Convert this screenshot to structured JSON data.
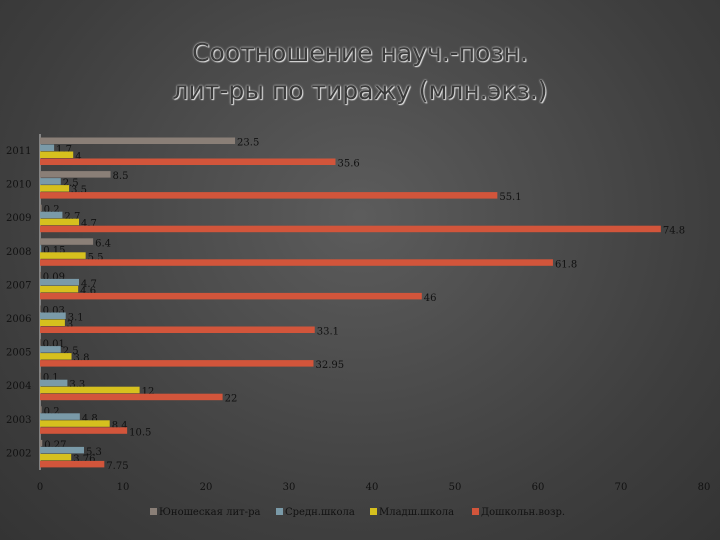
{
  "title": "Соотношение науч.-позн.\nлит-ры по тиражу (млн.экз.)",
  "colors": {
    "series": [
      "#8a7f77",
      "#7a9aa8",
      "#d6c01e",
      "#d2553b"
    ],
    "axis": "#c8c8c8"
  },
  "chart_data": {
    "type": "bar",
    "orientation": "horizontal",
    "categories": [
      "2011",
      "2010",
      "2009",
      "2008",
      "2007",
      "2006",
      "2005",
      "2004",
      "2003",
      "2002"
    ],
    "series": [
      {
        "name": "Юношеская лит-ра",
        "values": [
          23.5,
          8.5,
          0.2,
          6.4,
          0.09,
          0.03,
          0.01,
          0.1,
          0.2,
          0.27
        ]
      },
      {
        "name": "Средн.школа",
        "values": [
          1.7,
          2.5,
          2.7,
          0.15,
          4.7,
          3.1,
          2.5,
          3.3,
          4.8,
          5.3
        ]
      },
      {
        "name": "Младш.школа",
        "values": [
          4,
          3.5,
          4.7,
          5.5,
          4.6,
          3,
          3.8,
          12,
          8.4,
          3.76
        ]
      },
      {
        "name": "Дошкольн.возр.",
        "values": [
          35.6,
          55.1,
          74.8,
          61.8,
          46,
          33.1,
          32.95,
          22,
          10.5,
          7.75
        ]
      }
    ],
    "data_labels": [
      [
        "23.5",
        "1.7",
        "4",
        "35.6"
      ],
      [
        "8.5",
        "2.5",
        "3.5",
        "55.1"
      ],
      [
        "0.2",
        "2.7",
        "4.7",
        "74.8"
      ],
      [
        "6.4",
        "0.15",
        "5.5",
        "61.8"
      ],
      [
        "0.09",
        "4.7",
        "4.6",
        "46"
      ],
      [
        "0.03",
        "3.1",
        "3",
        "33.1"
      ],
      [
        "0.01",
        "2.5",
        "3.8",
        "32.95"
      ],
      [
        "0.1",
        "3.3",
        "12",
        "22"
      ],
      [
        "0.2",
        "4.8",
        "8.4",
        "10.5"
      ],
      [
        "0.27",
        "5.3",
        "3.76",
        "7.75"
      ]
    ],
    "xlim": [
      0,
      80
    ],
    "xticks": [
      "0",
      "10",
      "20",
      "30",
      "40",
      "50",
      "60",
      "70",
      "80"
    ],
    "grid": false,
    "legend_position": "bottom"
  }
}
